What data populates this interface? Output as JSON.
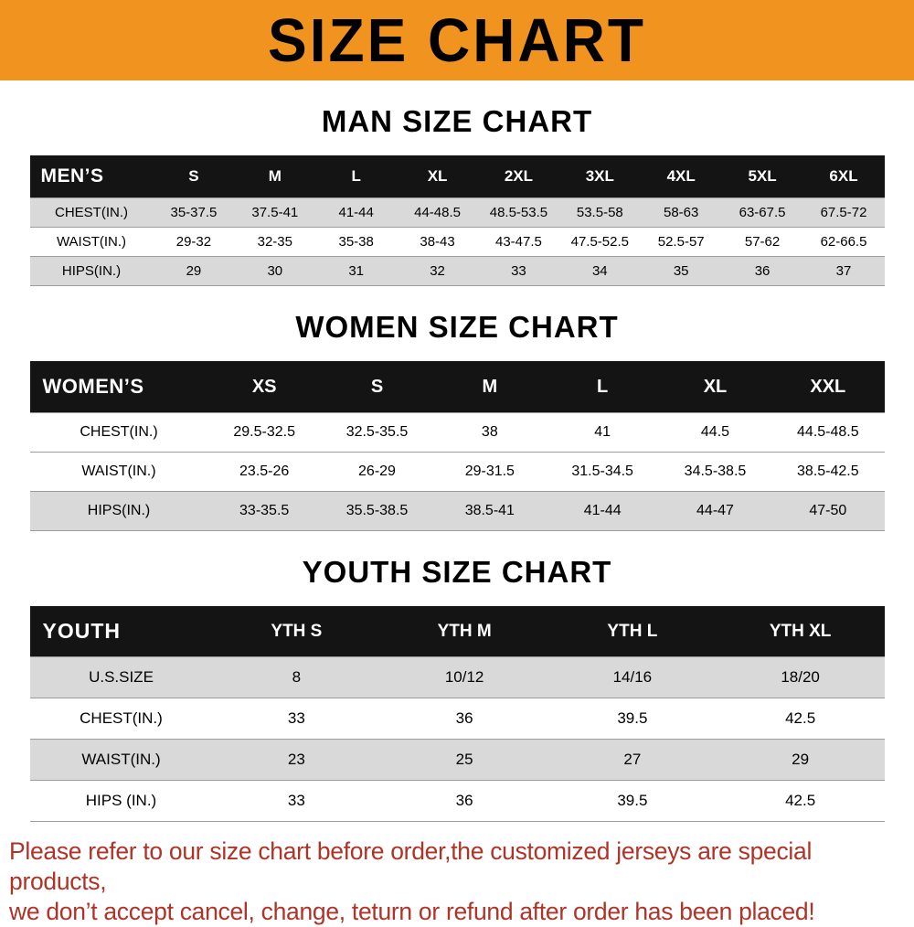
{
  "banner": {
    "title": "SIZE CHART",
    "bg_color": "#f0931f",
    "text_color": "#000000"
  },
  "sections": [
    {
      "title": "MAN SIZE CHART",
      "table": {
        "header": [
          "MEN’S",
          "S",
          "M",
          "L",
          "XL",
          "2XL",
          "3XL",
          "4XL",
          "5XL",
          "6XL"
        ],
        "rows": [
          [
            "CHEST(IN.)",
            "35-37.5",
            "37.5-41",
            "41-44",
            "44-48.5",
            "48.5-53.5",
            "53.5-58",
            "58-63",
            "63-67.5",
            "67.5-72"
          ],
          [
            "WAIST(IN.)",
            "29-32",
            "32-35",
            "35-38",
            "38-43",
            "43-47.5",
            "47.5-52.5",
            "52.5-57",
            "57-62",
            "62-66.5"
          ],
          [
            "HIPS(IN.)",
            "29",
            "30",
            "31",
            "32",
            "33",
            "34",
            "35",
            "36",
            "37"
          ]
        ]
      }
    },
    {
      "title": "WOMEN SIZE CHART",
      "table": {
        "header": [
          "WOMEN’S",
          "XS",
          "S",
          "M",
          "L",
          "XL",
          "XXL"
        ],
        "rows": [
          [
            "CHEST(IN.)",
            "29.5-32.5",
            "32.5-35.5",
            "38",
            "41",
            "44.5",
            "44.5-48.5"
          ],
          [
            "WAIST(IN.)",
            "23.5-26",
            "26-29",
            "29-31.5",
            "31.5-34.5",
            "34.5-38.5",
            "38.5-42.5"
          ],
          [
            "HIPS(IN.)",
            "33-35.5",
            "35.5-38.5",
            "38.5-41",
            "41-44",
            "44-47",
            "47-50"
          ]
        ]
      }
    },
    {
      "title": "YOUTH SIZE CHART",
      "table": {
        "header": [
          "YOUTH",
          "YTH S",
          "YTH M",
          "YTH L",
          "YTH XL"
        ],
        "rows": [
          [
            "U.S.SIZE",
            "8",
            "10/12",
            "14/16",
            "18/20"
          ],
          [
            "CHEST(IN.)",
            "33",
            "36",
            "39.5",
            "42.5"
          ],
          [
            "WAIST(IN.)",
            "23",
            "25",
            "27",
            "29"
          ],
          [
            "HIPS (IN.)",
            "33",
            "36",
            "39.5",
            "42.5"
          ]
        ]
      }
    }
  ],
  "footer": {
    "lines": [
      "Please refer to our size chart before order,the customized jerseys are special products,",
      "we don’t accept cancel, change, teturn or refund after order has been placed!"
    ],
    "color": "#b03327"
  },
  "colors": {
    "banner_bg": "#f0931f",
    "header_row_bg": "#141414",
    "header_row_text": "#ffffff",
    "shaded_row_bg": "#d9d9d9",
    "row_line": "#9c9c9c"
  }
}
